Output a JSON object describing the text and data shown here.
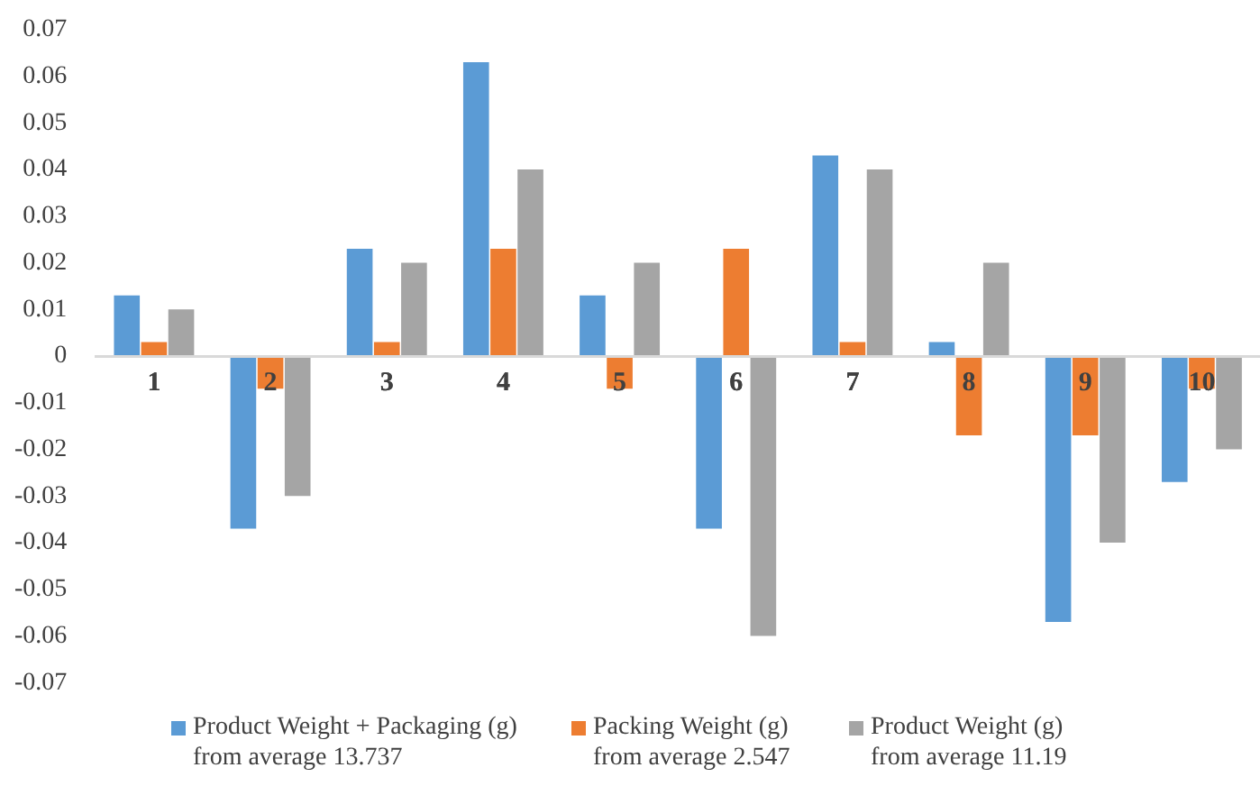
{
  "chart_data": {
    "type": "bar",
    "categories": [
      "1",
      "2",
      "3",
      "4",
      "5",
      "6",
      "7",
      "8",
      "9",
      "10"
    ],
    "series": [
      {
        "name": "Product Weight + Packaging (g) from average 13.737",
        "color": "#5b9bd5",
        "values": [
          0.013,
          -0.037,
          0.023,
          0.063,
          0.013,
          -0.037,
          0.043,
          0.003,
          -0.057,
          -0.027
        ]
      },
      {
        "name": "Packing Weight (g) from average 2.547",
        "color": "#ed7d31",
        "values": [
          0.003,
          -0.007,
          0.003,
          0.023,
          -0.007,
          0.023,
          0.003,
          -0.017,
          -0.017,
          -0.007
        ]
      },
      {
        "name": "Product Weight (g) from average 11.19",
        "color": "#a5a5a5",
        "values": [
          0.01,
          -0.03,
          0.02,
          0.04,
          0.02,
          -0.06,
          0.04,
          0.02,
          -0.04,
          -0.02
        ]
      }
    ],
    "ylim": [
      -0.07,
      0.07
    ],
    "yticks": [
      -0.07,
      -0.06,
      -0.05,
      -0.04,
      -0.03,
      -0.02,
      -0.01,
      0,
      0.01,
      0.02,
      0.03,
      0.04,
      0.05,
      0.06,
      0.07
    ],
    "grid": false,
    "legend": "bottom"
  }
}
